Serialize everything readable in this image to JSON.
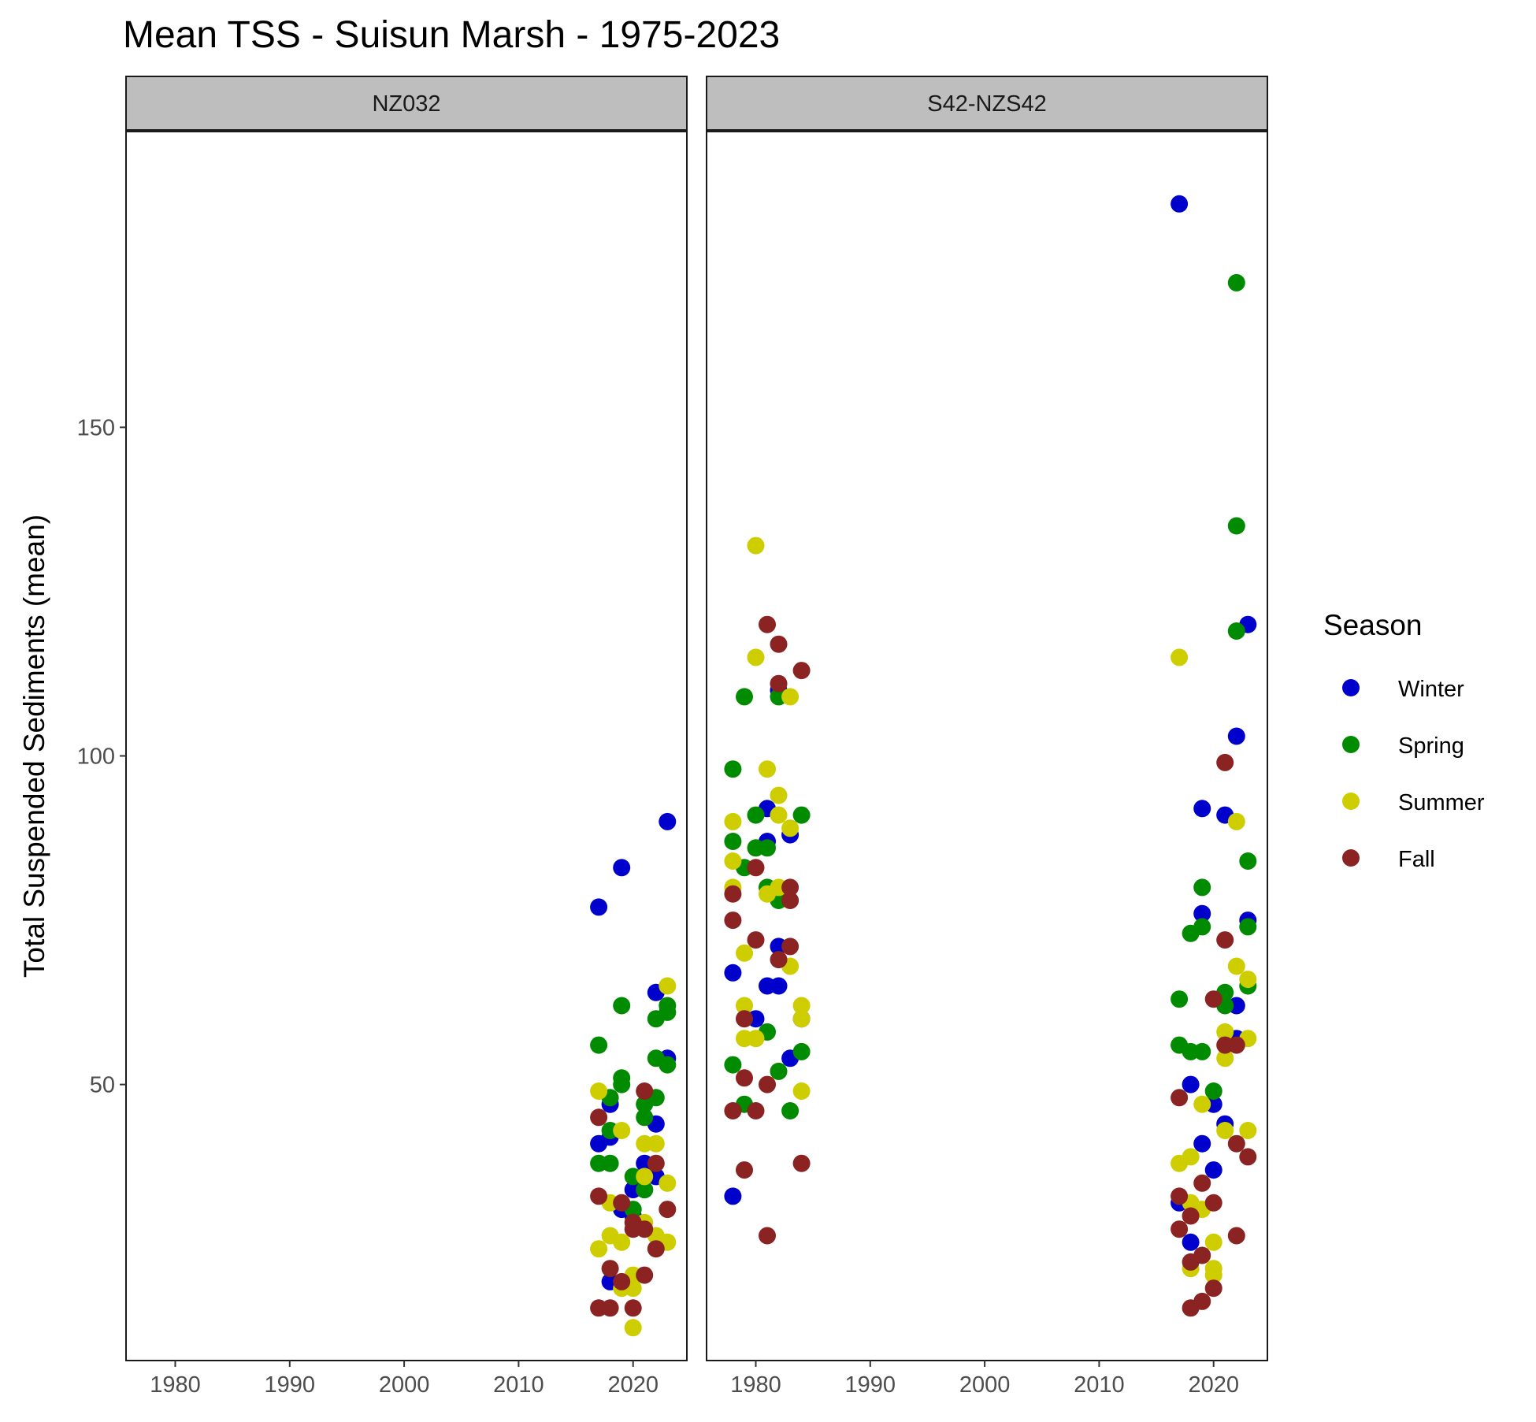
{
  "chart_data": {
    "type": "scatter",
    "title": "Mean TSS - Suisun Marsh - 1975-2023",
    "ylabel": "Total Suspended Sediments (mean)",
    "xlabel": "",
    "xlim": [
      1975.7,
      2024.7
    ],
    "ylim": [
      8,
      195
    ],
    "x_ticks": [
      1980,
      1990,
      2000,
      2010,
      2020
    ],
    "y_ticks": [
      50,
      100,
      150
    ],
    "grid": false,
    "legend": {
      "title": "Season",
      "position": "right",
      "entries": [
        {
          "name": "Winter",
          "color": "#0000cd"
        },
        {
          "name": "Spring",
          "color": "#008b00"
        },
        {
          "name": "Summer",
          "color": "#cdcd00"
        },
        {
          "name": "Fall",
          "color": "#8b2323"
        }
      ]
    },
    "panels": [
      {
        "label": "NZ032",
        "series": [
          {
            "name": "Winter",
            "points": [
              [
                2017,
                77
              ],
              [
                2017,
                41
              ],
              [
                2018,
                47
              ],
              [
                2018,
                42
              ],
              [
                2018,
                20
              ],
              [
                2019,
                83
              ],
              [
                2019,
                31
              ],
              [
                2020,
                34
              ],
              [
                2020,
                30
              ],
              [
                2021,
                38
              ],
              [
                2021,
                34
              ],
              [
                2022,
                64
              ],
              [
                2022,
                44
              ],
              [
                2022,
                36
              ],
              [
                2023,
                90
              ],
              [
                2023,
                54
              ]
            ]
          },
          {
            "name": "Spring",
            "points": [
              [
                2017,
                56
              ],
              [
                2017,
                38
              ],
              [
                2018,
                48
              ],
              [
                2018,
                43
              ],
              [
                2018,
                38
              ],
              [
                2019,
                62
              ],
              [
                2019,
                51
              ],
              [
                2019,
                50
              ],
              [
                2020,
                36
              ],
              [
                2020,
                31
              ],
              [
                2021,
                47
              ],
              [
                2021,
                45
              ],
              [
                2021,
                34
              ],
              [
                2022,
                60
              ],
              [
                2022,
                54
              ],
              [
                2022,
                48
              ],
              [
                2023,
                62
              ],
              [
                2023,
                61
              ],
              [
                2023,
                53
              ]
            ]
          },
          {
            "name": "Summer",
            "points": [
              [
                2017,
                49
              ],
              [
                2017,
                25
              ],
              [
                2018,
                32
              ],
              [
                2018,
                27
              ],
              [
                2019,
                43
              ],
              [
                2019,
                26
              ],
              [
                2019,
                19
              ],
              [
                2020,
                21
              ],
              [
                2020,
                19
              ],
              [
                2020,
                13
              ],
              [
                2021,
                41
              ],
              [
                2021,
                36
              ],
              [
                2021,
                29
              ],
              [
                2022,
                41
              ],
              [
                2022,
                27
              ],
              [
                2023,
                65
              ],
              [
                2023,
                35
              ],
              [
                2023,
                26
              ]
            ]
          },
          {
            "name": "Fall",
            "points": [
              [
                2017,
                45
              ],
              [
                2017,
                33
              ],
              [
                2017,
                16
              ],
              [
                2018,
                22
              ],
              [
                2018,
                16
              ],
              [
                2019,
                32
              ],
              [
                2019,
                20
              ],
              [
                2020,
                29
              ],
              [
                2020,
                28
              ],
              [
                2020,
                16
              ],
              [
                2021,
                49
              ],
              [
                2021,
                28
              ],
              [
                2021,
                21
              ],
              [
                2022,
                38
              ],
              [
                2022,
                25
              ],
              [
                2023,
                31
              ]
            ]
          }
        ]
      },
      {
        "label": "S42-NZS42",
        "series": [
          {
            "name": "Winter",
            "points": [
              [
                1978,
                67
              ],
              [
                1978,
                33
              ],
              [
                1980,
                60
              ],
              [
                1981,
                92
              ],
              [
                1981,
                87
              ],
              [
                1981,
                65
              ],
              [
                1982,
                110
              ],
              [
                1982,
                71
              ],
              [
                1982,
                65
              ],
              [
                1983,
                88
              ],
              [
                1983,
                54
              ],
              [
                1984,
                60
              ],
              [
                2017,
                184
              ],
              [
                2017,
                32
              ],
              [
                2018,
                50
              ],
              [
                2018,
                26
              ],
              [
                2019,
                92
              ],
              [
                2019,
                76
              ],
              [
                2019,
                41
              ],
              [
                2020,
                47
              ],
              [
                2020,
                37
              ],
              [
                2021,
                91
              ],
              [
                2021,
                44
              ],
              [
                2022,
                103
              ],
              [
                2022,
                62
              ],
              [
                2022,
                57
              ],
              [
                2023,
                120
              ],
              [
                2023,
                75
              ]
            ]
          },
          {
            "name": "Spring",
            "points": [
              [
                1978,
                98
              ],
              [
                1978,
                87
              ],
              [
                1978,
                53
              ],
              [
                1979,
                109
              ],
              [
                1979,
                83
              ],
              [
                1979,
                47
              ],
              [
                1980,
                91
              ],
              [
                1980,
                86
              ],
              [
                1981,
                86
              ],
              [
                1981,
                80
              ],
              [
                1981,
                58
              ],
              [
                1982,
                109
              ],
              [
                1982,
                78
              ],
              [
                1982,
                52
              ],
              [
                1983,
                46
              ],
              [
                1984,
                91
              ],
              [
                1984,
                55
              ],
              [
                2017,
                63
              ],
              [
                2017,
                56
              ],
              [
                2018,
                73
              ],
              [
                2018,
                55
              ],
              [
                2019,
                80
              ],
              [
                2019,
                74
              ],
              [
                2019,
                55
              ],
              [
                2020,
                49
              ],
              [
                2021,
                64
              ],
              [
                2021,
                62
              ],
              [
                2022,
                172
              ],
              [
                2022,
                135
              ],
              [
                2022,
                119
              ],
              [
                2023,
                84
              ],
              [
                2023,
                74
              ],
              [
                2023,
                65
              ]
            ]
          },
          {
            "name": "Summer",
            "points": [
              [
                1978,
                90
              ],
              [
                1978,
                84
              ],
              [
                1978,
                80
              ],
              [
                1979,
                70
              ],
              [
                1979,
                62
              ],
              [
                1979,
                57
              ],
              [
                1980,
                132
              ],
              [
                1980,
                115
              ],
              [
                1980,
                57
              ],
              [
                1981,
                98
              ],
              [
                1981,
                79
              ],
              [
                1982,
                94
              ],
              [
                1982,
                91
              ],
              [
                1982,
                80
              ],
              [
                1983,
                109
              ],
              [
                1983,
                89
              ],
              [
                1983,
                68
              ],
              [
                1984,
                62
              ],
              [
                1984,
                60
              ],
              [
                1984,
                49
              ],
              [
                2017,
                115
              ],
              [
                2017,
                38
              ],
              [
                2018,
                39
              ],
              [
                2018,
                32
              ],
              [
                2018,
                22
              ],
              [
                2019,
                47
              ],
              [
                2019,
                31
              ],
              [
                2020,
                26
              ],
              [
                2020,
                22
              ],
              [
                2020,
                21
              ],
              [
                2021,
                58
              ],
              [
                2021,
                54
              ],
              [
                2021,
                43
              ],
              [
                2022,
                90
              ],
              [
                2022,
                68
              ],
              [
                2023,
                66
              ],
              [
                2023,
                57
              ],
              [
                2023,
                43
              ]
            ]
          },
          {
            "name": "Fall",
            "points": [
              [
                1978,
                79
              ],
              [
                1978,
                75
              ],
              [
                1978,
                46
              ],
              [
                1979,
                60
              ],
              [
                1979,
                51
              ],
              [
                1979,
                37
              ],
              [
                1980,
                83
              ],
              [
                1980,
                72
              ],
              [
                1980,
                46
              ],
              [
                1981,
                120
              ],
              [
                1981,
                50
              ],
              [
                1981,
                27
              ],
              [
                1982,
                117
              ],
              [
                1982,
                111
              ],
              [
                1982,
                69
              ],
              [
                1983,
                80
              ],
              [
                1983,
                78
              ],
              [
                1983,
                71
              ],
              [
                1984,
                113
              ],
              [
                1984,
                38
              ],
              [
                2017,
                48
              ],
              [
                2017,
                33
              ],
              [
                2017,
                28
              ],
              [
                2018,
                30
              ],
              [
                2018,
                23
              ],
              [
                2018,
                16
              ],
              [
                2019,
                35
              ],
              [
                2019,
                24
              ],
              [
                2019,
                17
              ],
              [
                2020,
                63
              ],
              [
                2020,
                32
              ],
              [
                2020,
                19
              ],
              [
                2021,
                99
              ],
              [
                2021,
                72
              ],
              [
                2021,
                56
              ],
              [
                2022,
                56
              ],
              [
                2022,
                41
              ],
              [
                2022,
                27
              ],
              [
                2023,
                39
              ]
            ]
          }
        ]
      }
    ]
  }
}
